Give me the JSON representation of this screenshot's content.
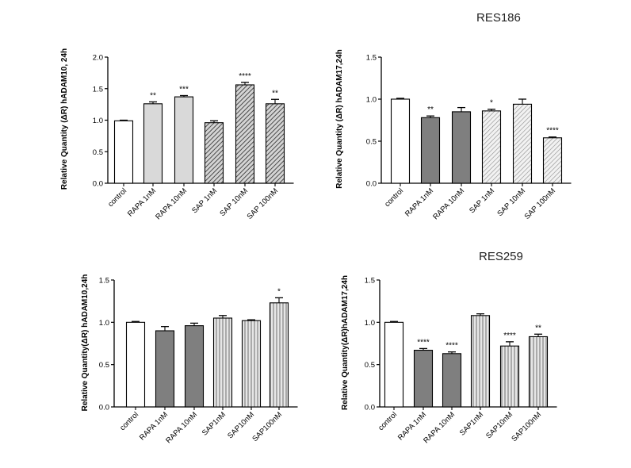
{
  "chart_data": [
    {
      "type": "bar",
      "title": "",
      "ylabel": "Relative Quantity (ΔR) hADAM10, 24h",
      "xlabel": "",
      "ylim": [
        0,
        2.0
      ],
      "yticks": [
        "0.0",
        "0.5",
        "1.0",
        "1.5",
        "2.0"
      ],
      "categories": [
        "control",
        "RAPA 1nM",
        "RAPA 10nM",
        "SAP 1nM",
        "SAP 10nM",
        "SAP 100nM"
      ],
      "values": [
        0.99,
        1.26,
        1.37,
        0.96,
        1.56,
        1.26
      ],
      "errors": [
        0.01,
        0.03,
        0.02,
        0.03,
        0.04,
        0.07
      ],
      "significance": [
        "",
        "**",
        "***",
        "",
        "****",
        "**"
      ],
      "fills": [
        "white",
        "lightgray",
        "lightgray",
        "darkhatch",
        "darkhatch",
        "darkhatch"
      ]
    },
    {
      "type": "bar",
      "title": "RES186",
      "ylabel": "Relative Quantity (ΔR) hADAM17,24h",
      "xlabel": "",
      "ylim": [
        0,
        1.5
      ],
      "yticks": [
        "0.0",
        "0.5",
        "1.0",
        "1.5"
      ],
      "categories": [
        "control",
        "RAPA 1nM",
        "RAPA 10nM",
        "SAP 1nM",
        "SAP 10nM",
        "SAP 100nM"
      ],
      "values": [
        1.0,
        0.78,
        0.85,
        0.86,
        0.94,
        0.54
      ],
      "errors": [
        0.01,
        0.02,
        0.05,
        0.02,
        0.06,
        0.01
      ],
      "significance": [
        "",
        "**",
        "",
        "*",
        "",
        "****"
      ],
      "fills": [
        "white",
        "gray",
        "gray",
        "lighthatch",
        "lighthatch",
        "lighthatch"
      ]
    },
    {
      "type": "bar",
      "title": "",
      "ylabel": "Relative Quantity(ΔR) hADAM10,24h",
      "xlabel": "",
      "ylim": [
        0,
        1.5
      ],
      "yticks": [
        "0.0",
        "0.5",
        "1.0",
        "1.5"
      ],
      "categories": [
        "control",
        "RAPA 1nM",
        "RAPA 10nM",
        "SAP1nM",
        "SAP10nM",
        "SAP100nM"
      ],
      "values": [
        1.0,
        0.9,
        0.96,
        1.05,
        1.02,
        1.23
      ],
      "errors": [
        0.01,
        0.05,
        0.03,
        0.03,
        0.01,
        0.06
      ],
      "significance": [
        "",
        "",
        "",
        "",
        "",
        "*"
      ],
      "fills": [
        "white",
        "gray",
        "gray",
        "vstripe",
        "vstripe",
        "vstripe"
      ]
    },
    {
      "type": "bar",
      "title": "RES259",
      "ylabel": "Relative Quantity(ΔR)hADAM17,24h",
      "xlabel": "",
      "ylim": [
        0,
        1.5
      ],
      "yticks": [
        "0.0",
        "0.5",
        "1.0",
        "1.5"
      ],
      "categories": [
        "control",
        "RAPA 1nM",
        "RAPA 10nM",
        "SAP1nM",
        "SAP10nM",
        "SAP100nM"
      ],
      "values": [
        1.0,
        0.67,
        0.63,
        1.08,
        0.72,
        0.83
      ],
      "errors": [
        0.01,
        0.02,
        0.02,
        0.02,
        0.05,
        0.03
      ],
      "significance": [
        "",
        "****",
        "****",
        "",
        "****",
        "**"
      ],
      "fills": [
        "white",
        "gray",
        "gray",
        "vstripe",
        "vstripe",
        "vstripe"
      ]
    }
  ]
}
